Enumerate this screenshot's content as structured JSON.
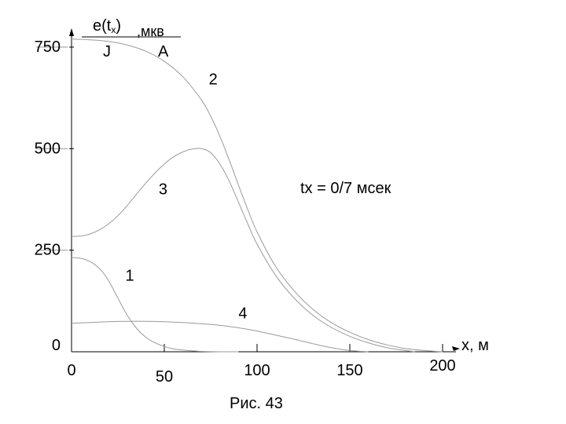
{
  "chart_data": {
    "type": "line",
    "title": "",
    "ylabel_main": "e(t",
    "ylabel_sub": "x",
    "ylabel_close": ")",
    "ylabel_units": ",мкв",
    "ylabel_frac_top": "J",
    "ylabel_frac_bottom": "A",
    "xlabel": "x, м",
    "annotation": "tx = 0/7 мсек",
    "caption": "Рис. 43",
    "xlim": [
      0,
      200
    ],
    "ylim": [
      0,
      780
    ],
    "x_ticks": [
      {
        "value": 0,
        "label": "0"
      },
      {
        "value": 50,
        "label": "50"
      },
      {
        "value": 100,
        "label": "100"
      },
      {
        "value": 150,
        "label": "150"
      },
      {
        "value": 200,
        "label": "200"
      }
    ],
    "y_ticks": [
      {
        "value": 0,
        "label": "0"
      },
      {
        "value": 250,
        "label": "250"
      },
      {
        "value": 500,
        "label": "500"
      },
      {
        "value": 750,
        "label": "750"
      }
    ],
    "series": [
      {
        "name": "1",
        "x": [
          0,
          5,
          10,
          15,
          20,
          25,
          30,
          35,
          40,
          45,
          50,
          55,
          60,
          70,
          80,
          90
        ],
        "y": [
          232,
          230,
          222,
          205,
          175,
          132,
          90,
          58,
          36,
          22,
          13,
          7,
          4,
          1,
          0,
          0
        ]
      },
      {
        "name": "2",
        "x": [
          0,
          10,
          20,
          30,
          40,
          50,
          60,
          70,
          75,
          80,
          85,
          90,
          95,
          100,
          110,
          120,
          130,
          140,
          150,
          160,
          170,
          180,
          190,
          200
        ],
        "y": [
          770,
          768,
          764,
          755,
          740,
          715,
          677,
          620,
          580,
          530,
          472,
          410,
          350,
          295,
          210,
          150,
          105,
          72,
          48,
          30,
          17,
          8,
          3,
          0
        ]
      },
      {
        "name": "3",
        "x": [
          0,
          5,
          10,
          15,
          20,
          25,
          30,
          35,
          40,
          45,
          50,
          55,
          60,
          65,
          70,
          75,
          80,
          85,
          90,
          95,
          100,
          110,
          120,
          130,
          140,
          150,
          160,
          170,
          180,
          185
        ],
        "y": [
          284,
          285,
          290,
          300,
          315,
          335,
          360,
          388,
          415,
          440,
          462,
          480,
          492,
          499,
          500,
          490,
          462,
          420,
          368,
          315,
          265,
          188,
          132,
          90,
          60,
          38,
          22,
          10,
          3,
          0
        ]
      },
      {
        "name": "4",
        "x": [
          0,
          10,
          20,
          30,
          40,
          50,
          60,
          70,
          80,
          90,
          100,
          110,
          120,
          130,
          140,
          150,
          160
        ],
        "y": [
          70,
          72,
          74,
          75,
          75,
          74,
          72,
          69,
          65,
          59,
          51,
          41,
          31,
          20,
          10,
          3,
          0
        ]
      }
    ],
    "series_labels": [
      {
        "name": "1",
        "x": 29,
        "y": 175
      },
      {
        "name": "2",
        "x": 74,
        "y": 658
      },
      {
        "name": "3",
        "x": 47,
        "y": 388
      },
      {
        "name": "4",
        "x": 90,
        "y": 82
      }
    ],
    "legend": "none",
    "grid": false,
    "line_color": "#9a9a9a"
  }
}
